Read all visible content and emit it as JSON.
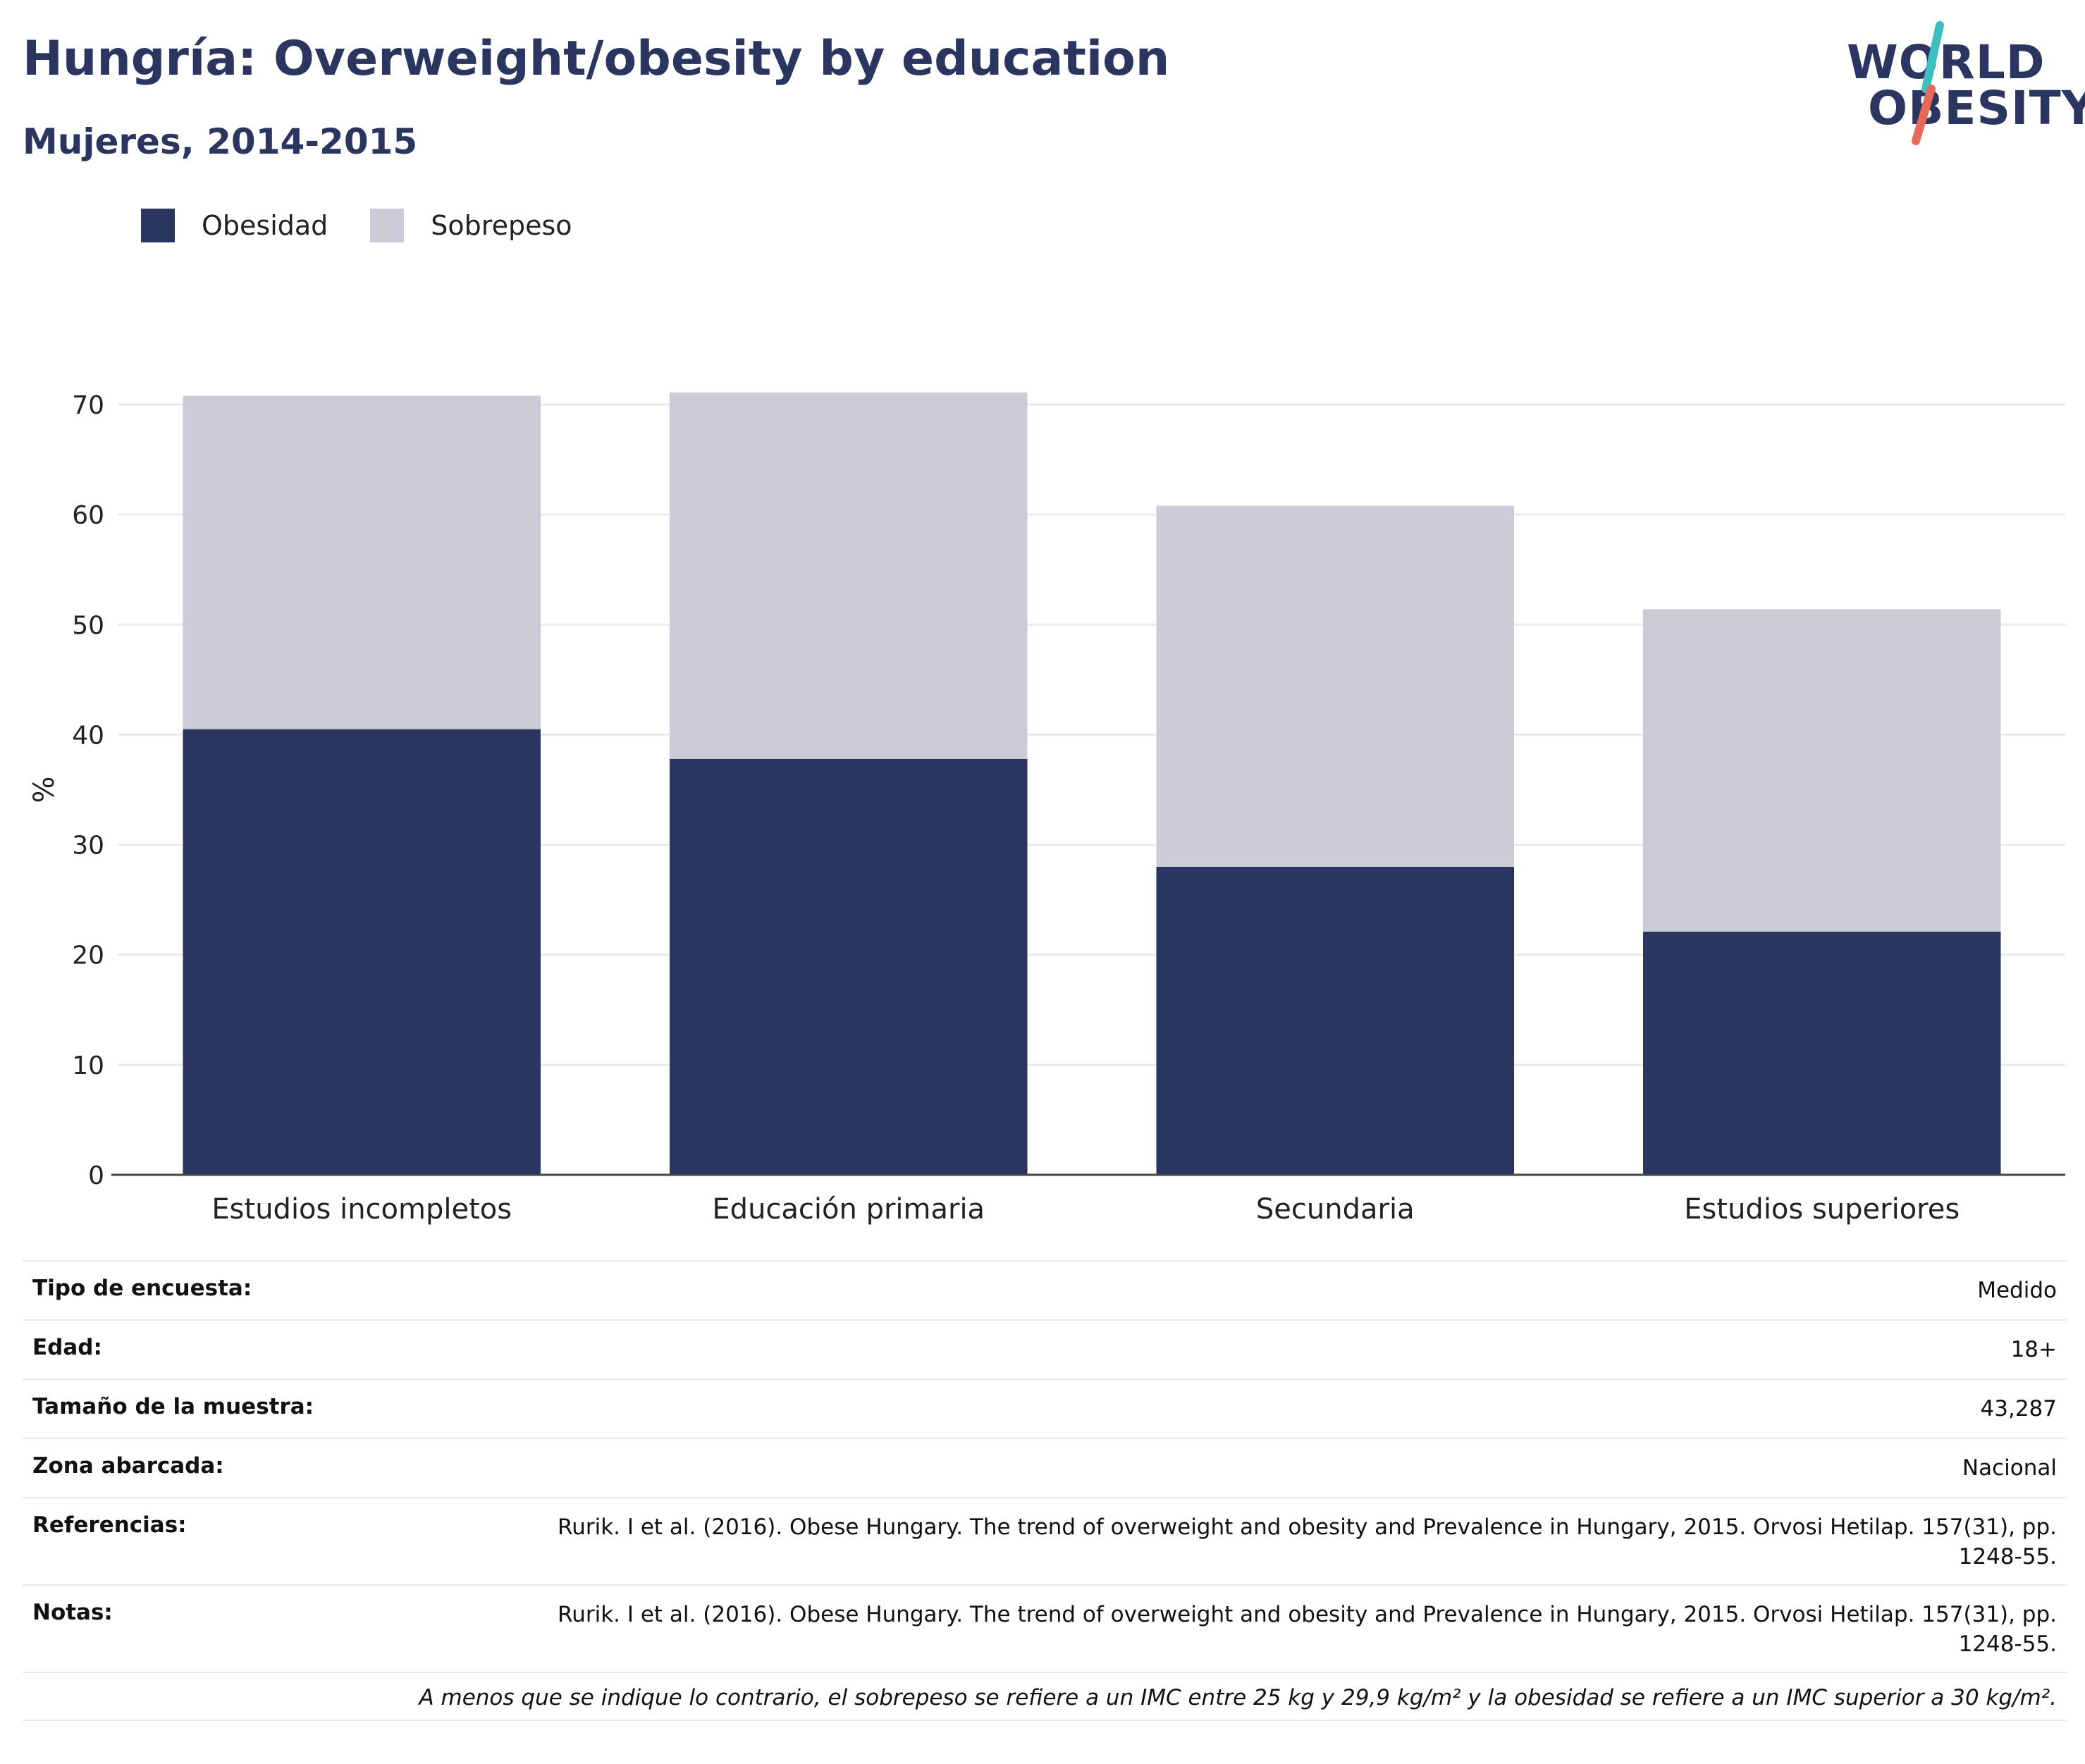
{
  "header": {
    "title": "Hungría: Overweight/obesity by education",
    "subtitle": "Mujeres, 2014-2015"
  },
  "logo": {
    "line1": "WORLD",
    "line2": "OBESITY"
  },
  "colors": {
    "obesidad": "#2a365f",
    "sobrepeso": "#cbccd8",
    "accent_teal": "#3bbfc1",
    "accent_coral": "#e8695a"
  },
  "legend": {
    "obesidad": "Obesidad",
    "sobrepeso": "Sobrepeso"
  },
  "chart_data": {
    "type": "bar",
    "stacked": true,
    "categories": [
      "Estudios incompletos",
      "Educación primaria",
      "Secundaria",
      "Estudios superiores"
    ],
    "series": [
      {
        "name": "Obesidad",
        "values": [
          40.5,
          37.8,
          28.0,
          22.1
        ]
      },
      {
        "name": "Sobrepeso",
        "values": [
          30.3,
          33.3,
          32.8,
          29.3
        ]
      }
    ],
    "ylabel": "%",
    "ylim": [
      0,
      70
    ],
    "yticks": [
      0,
      10,
      20,
      30,
      40,
      50,
      60,
      70
    ],
    "grid": true,
    "legend_position": "top-left"
  },
  "info": {
    "survey_type": {
      "label": "Tipo de encuesta:",
      "value": "Medido"
    },
    "age": {
      "label": "Edad:",
      "value": "18+"
    },
    "sample_size": {
      "label": "Tamaño de la muestra:",
      "value": "43,287"
    },
    "area": {
      "label": "Zona abarcada:",
      "value": "Nacional"
    },
    "references": {
      "label": "Referencias:",
      "value": "Rurik. I et al. (2016). Obese Hungary. The trend of overweight and obesity and Prevalence in Hungary, 2015. Orvosi Hetilap. 157(31), pp. 1248-55."
    },
    "notes": {
      "label": "Notas:",
      "value": "Rurik. I et al. (2016). Obese Hungary. The trend of overweight and obesity and Prevalence in Hungary, 2015. Orvosi Hetilap. 157(31), pp. 1248-55."
    },
    "footnote": "A menos que se indique lo contrario, el sobrepeso se refiere a un IMC entre 25 kg y 29,9 kg/m² y la obesidad se refiere a un IMC superior a 30 kg/m²."
  }
}
